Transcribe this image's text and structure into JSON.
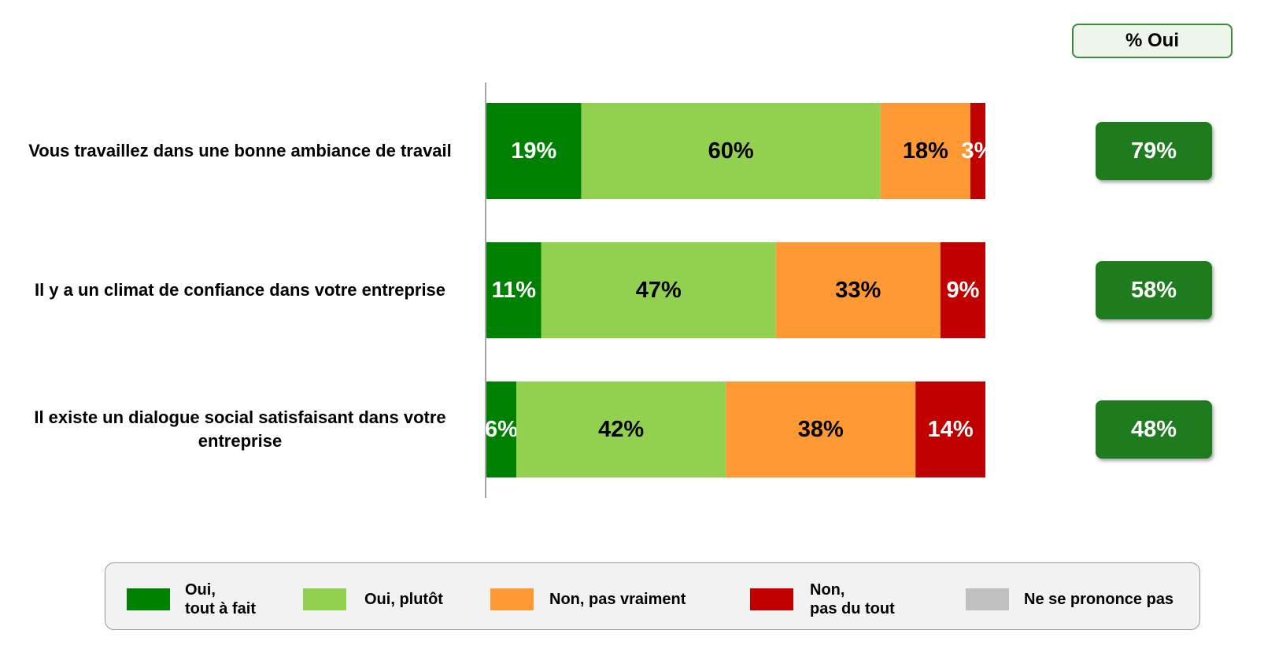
{
  "chart_data": {
    "type": "stacked-bar-horizontal",
    "categories": [
      "Vous travaillez dans une bonne ambiance de travail",
      "Il y a un climat de confiance dans votre entreprise",
      "Il existe un dialogue social satisfaisant dans votre entreprise"
    ],
    "xlim": [
      0,
      100
    ],
    "series": [
      {
        "name": "Oui,\ntout à fait",
        "color": "#008000",
        "label_color": "#ffffff",
        "values": [
          19,
          11,
          6
        ],
        "value_labels": [
          "19%",
          "11%",
          "6%"
        ]
      },
      {
        "name": "Oui, plutôt",
        "color": "#92d050",
        "label_color": "#000000",
        "values": [
          60,
          47,
          42
        ],
        "value_labels": [
          "60%",
          "47%",
          "42%"
        ]
      },
      {
        "name": "Non, pas vraiment",
        "color": "#ff9933",
        "label_color": "#000000",
        "values": [
          18,
          33,
          38
        ],
        "value_labels": [
          "18%",
          "33%",
          "38%"
        ]
      },
      {
        "name": "Non,\npas du tout",
        "color": "#c00000",
        "label_color": "#ffffff",
        "values": [
          3,
          9,
          14
        ],
        "value_labels": [
          "3%",
          "9%",
          "14%"
        ]
      },
      {
        "name": "Ne se prononce pas",
        "color": "#c0c0c0",
        "label_color": "#000000",
        "values": [
          0,
          0,
          0
        ]
      }
    ],
    "totals": {
      "title": "% Oui",
      "values": [
        79,
        58,
        48
      ],
      "value_labels": [
        "79%",
        "58%",
        "48%"
      ],
      "color": "#1e7b1e"
    }
  }
}
